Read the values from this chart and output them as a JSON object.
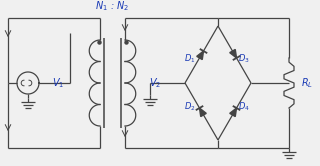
{
  "bg_color": "#f0f0f0",
  "line_color": "#444444",
  "label_color": "#1a3ab5",
  "figsize": [
    3.2,
    1.66
  ],
  "dpi": 100,
  "xlim": [
    0,
    320
  ],
  "ylim": [
    0,
    166
  ],
  "n1_label": "$N_1$",
  "n2_label": "$N_2$",
  "v1_label": "$V_1$",
  "v2_label": "$V_2$",
  "rl_label": "$R_L$",
  "d1_label": "$D_1$",
  "d2_label": "$D_2$",
  "d3_label": "$D_3$",
  "d4_label": "$D_4$",
  "coil_turns": 4,
  "arrow_color": "#444444"
}
